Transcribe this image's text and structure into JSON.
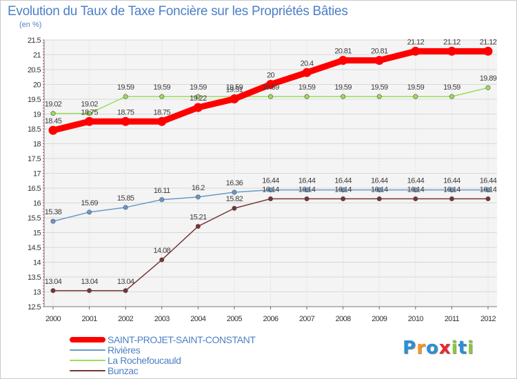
{
  "title": "Evolution du Taux de Taxe Foncière sur les Propriétés Bâties",
  "subtitle": "(en %)",
  "chart_data": {
    "type": "line",
    "title": "Evolution du Taux de Taxe Foncière sur les Propriétés Bâties",
    "ylabel": "(en %)",
    "xlabel": "",
    "x": [
      2000,
      2001,
      2002,
      2003,
      2004,
      2005,
      2006,
      2007,
      2008,
      2009,
      2010,
      2011,
      2012
    ],
    "ylim": [
      12.5,
      21.5
    ],
    "yticks": [
      12.5,
      13,
      13.5,
      14,
      14.5,
      15,
      15.5,
      16,
      16.5,
      17,
      17.5,
      18,
      18.5,
      19,
      19.5,
      20,
      20.5,
      21,
      21.5
    ],
    "grid": true,
    "legend_position": "bottom-left",
    "series": [
      {
        "name": "SAINT-PROJET-SAINT-CONSTANT",
        "color": "#ff0000",
        "values": [
          18.45,
          18.75,
          18.75,
          18.75,
          19.22,
          19.51,
          20,
          20.4,
          20.81,
          20.81,
          21.12,
          21.12,
          21.12
        ],
        "labels": [
          "18.45",
          "18.75",
          "18.75",
          "18.75",
          "19.22",
          "19.51",
          "20",
          "20.4",
          "20.81",
          "20.81",
          "21.12",
          "21.12",
          "21.12"
        ]
      },
      {
        "name": "Rivières",
        "color": "#6699cc",
        "values": [
          15.38,
          15.69,
          15.85,
          16.11,
          16.2,
          16.36,
          16.44,
          16.44,
          16.44,
          16.44,
          16.44,
          16.44,
          16.44
        ],
        "labels": [
          "15.38",
          "15.69",
          "15.85",
          "16.11",
          "16.2",
          "16.36",
          "16.44",
          "16.44",
          "16.44",
          "16.44",
          "16.44",
          "16.44",
          "16.44"
        ]
      },
      {
        "name": "La Rochefoucauld",
        "color": "#99dd55",
        "values": [
          19.02,
          19.02,
          19.59,
          19.59,
          19.59,
          19.59,
          19.59,
          19.59,
          19.59,
          19.59,
          19.59,
          19.59,
          19.89
        ],
        "labels": [
          "19.02",
          "19.02",
          "19.59",
          "19.59",
          "19.59",
          "19.59",
          "19.59",
          "19.59",
          "19.59",
          "19.59",
          "19.59",
          "19.59",
          "19.89"
        ]
      },
      {
        "name": "Bunzac",
        "color": "#773333",
        "values": [
          13.04,
          13.04,
          13.04,
          14.08,
          15.21,
          15.82,
          16.14,
          16.14,
          16.14,
          16.14,
          16.14,
          16.14,
          16.14
        ],
        "labels": [
          "13.04",
          "13.04",
          "13.04",
          "14.08",
          "15.21",
          "15.82",
          "16.14",
          "16.14",
          "16.14",
          "16.14",
          "16.14",
          "16.14",
          "16.14"
        ]
      }
    ]
  },
  "legend": {
    "items": [
      {
        "label": "SAINT-PROJET-SAINT-CONSTANT",
        "color": "#ff0000"
      },
      {
        "label": "Rivières",
        "color": "#6699cc"
      },
      {
        "label": "La Rochefoucauld",
        "color": "#99dd55"
      },
      {
        "label": "Bunzac",
        "color": "#773333"
      }
    ]
  },
  "logo": {
    "text": "Proxiti",
    "letters": [
      "P",
      "r",
      "o",
      "x",
      "i",
      "t",
      "i"
    ],
    "colors": [
      "#2a8fd6",
      "#f7941d",
      "#2a8fd6",
      "#e8262e",
      "#8dc63f",
      "#2a8fd6",
      "#8dc63f"
    ]
  }
}
